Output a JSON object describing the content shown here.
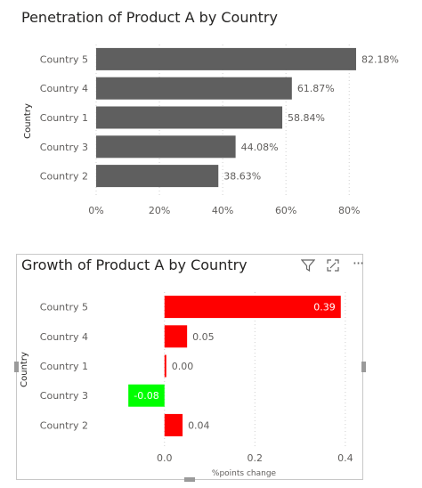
{
  "charts": [
    {
      "title": "Penetration of Product A by Country",
      "ylabel": "Country",
      "xlabel": "",
      "categories": [
        "Country 5",
        "Country 4",
        "Country 1",
        "Country 3",
        "Country 2"
      ],
      "values": [
        82.18,
        61.87,
        58.84,
        44.08,
        38.63
      ],
      "data_labels": [
        "82.18%",
        "61.87%",
        "58.84%",
        "44.08%",
        "38.63%"
      ],
      "xticks": [
        "0%",
        "20%",
        "40%",
        "60%",
        "80%"
      ],
      "xtick_values": [
        0,
        20,
        40,
        60,
        80
      ],
      "xlim": [
        0,
        85
      ],
      "bar_color": "#5f5f5f"
    },
    {
      "title": "Growth of Product A by Country",
      "ylabel": "Country",
      "xlabel": "%points change",
      "categories": [
        "Country 5",
        "Country 4",
        "Country 1",
        "Country 3",
        "Country 2"
      ],
      "values": [
        0.39,
        0.05,
        0.0,
        -0.08,
        0.04
      ],
      "data_labels": [
        "0.39",
        "0.05",
        "0.00",
        "-0.08",
        "0.04"
      ],
      "xticks": [
        "0.0",
        "0.2",
        "0.4"
      ],
      "xtick_values": [
        0.0,
        0.2,
        0.4
      ],
      "xlim": [
        -0.1,
        0.42
      ],
      "positive_color": "#ff0000",
      "negative_color": "#00ff00"
    }
  ],
  "chart_data": [
    {
      "type": "bar",
      "orientation": "horizontal",
      "title": "Penetration of Product A by Country",
      "xlabel": "",
      "ylabel": "Country",
      "categories": [
        "Country 5",
        "Country 4",
        "Country 1",
        "Country 3",
        "Country 2"
      ],
      "values": [
        82.18,
        61.87,
        58.84,
        44.08,
        38.63
      ],
      "unit": "%",
      "xlim": [
        0,
        85
      ],
      "grid": "vertical dotted"
    },
    {
      "type": "bar",
      "orientation": "horizontal",
      "title": "Growth of Product A by Country",
      "xlabel": "%points change",
      "ylabel": "Country",
      "categories": [
        "Country 5",
        "Country 4",
        "Country 1",
        "Country 3",
        "Country 2"
      ],
      "values": [
        0.39,
        0.05,
        0.0,
        -0.08,
        0.04
      ],
      "xlim": [
        -0.1,
        0.42
      ],
      "grid": "vertical dotted"
    }
  ],
  "toolbar": {
    "filter_icon": "filter-icon",
    "focus_icon": "focus-mode-icon",
    "more_icon": "more-options-icon",
    "more_label": "···"
  }
}
